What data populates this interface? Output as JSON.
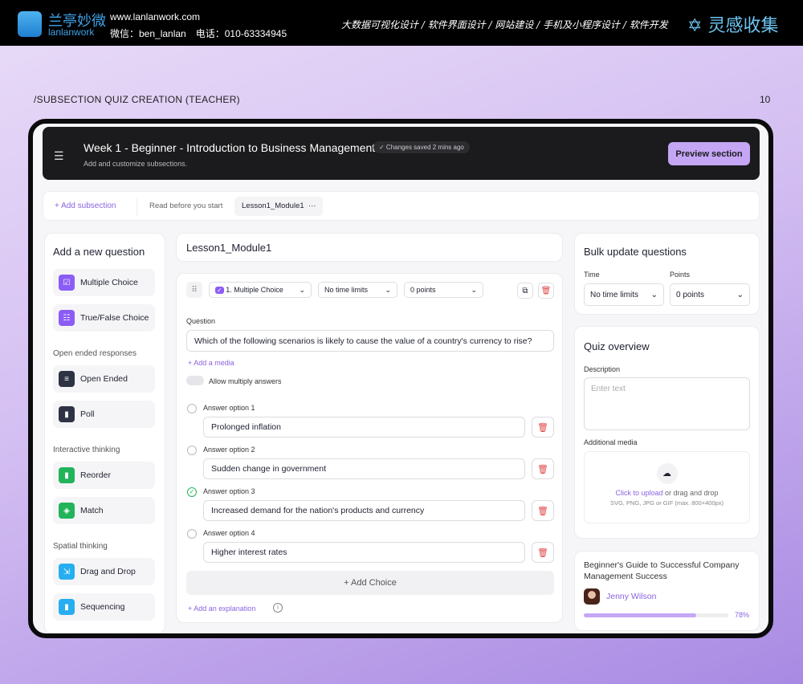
{
  "topbar": {
    "logo_cn": "兰亭妙微",
    "logo_en": "lanlanwork",
    "site": "www.lanlanwork.com",
    "contact": "微信：ben_lanlan　电话：010-63334945",
    "services": "大数据可视化设计 / 软件界面设计 / 网站建设 / 手机及小程序设计 / 软件开发",
    "brand": "灵感收集"
  },
  "slide": {
    "label": "/SUBSECTION QUIZ CREATION (TEACHER)",
    "page": "10"
  },
  "header": {
    "title": "Week 1 - Beginner - Introduction to Business Management",
    "saved": "✓ Changes saved 2 mins ago",
    "subtitle": "Add and customize subsections.",
    "preview": "Preview section"
  },
  "tabs": {
    "add": "+  Add subsection",
    "read": "Read before you start",
    "lesson": "Lesson1_Module1",
    "more": "···"
  },
  "left": {
    "title": "Add a new question",
    "items": [
      {
        "label": "Multiple Choice",
        "color": "#8b5cf6",
        "icon": "☑"
      },
      {
        "label": "True/False Choice",
        "color": "#8b5cf6",
        "icon": "☷"
      }
    ],
    "groups": [
      {
        "title": "Open ended responses",
        "items": [
          {
            "label": "Open Ended",
            "color": "#2d3344",
            "icon": "≡"
          },
          {
            "label": "Poll",
            "color": "#2d3344",
            "icon": "▮"
          }
        ]
      },
      {
        "title": "Interactive thinking",
        "items": [
          {
            "label": "Reorder",
            "color": "#22b45a",
            "icon": "▮"
          },
          {
            "label": "Match",
            "color": "#22b45a",
            "icon": "◈"
          }
        ]
      },
      {
        "title": "Spatial thinking",
        "items": [
          {
            "label": "Drag and Drop",
            "color": "#26aef0",
            "icon": "⇲"
          },
          {
            "label": "Sequencing",
            "color": "#26aef0",
            "icon": "▮"
          }
        ]
      }
    ]
  },
  "lesson_title": "Lesson1_Module1",
  "question": {
    "type": "1. Multiple Choice",
    "time": "No time limits",
    "points": "0 points",
    "label": "Question",
    "text": "Which of the following scenarios is likely to cause the value of a country's currency to rise?",
    "add_media": "+  Add a media",
    "allow_multi": "Allow multiply answers",
    "answers": [
      {
        "label": "Answer option 1",
        "value": "Prolonged inflation",
        "correct": false
      },
      {
        "label": "Answer option 2",
        "value": "Sudden change in government",
        "correct": false
      },
      {
        "label": "Answer option 3",
        "value": "Increased demand for the nation's products and currency",
        "correct": true
      },
      {
        "label": "Answer option 4",
        "value": "Higher interest rates",
        "correct": false
      }
    ],
    "add_choice": "+  Add Choice",
    "add_explanation": "+  Add an explanation"
  },
  "bulk": {
    "title": "Bulk update questions",
    "time_label": "Time",
    "time_value": "No time limits",
    "points_label": "Points",
    "points_value": "0 points"
  },
  "overview": {
    "title": "Quiz overview",
    "desc_label": "Description",
    "desc_placeholder": "Enter text",
    "media_label": "Additional media",
    "upload_link": "Click to upload",
    "upload_rest": " or drag and drop",
    "upload_hint": "SVG, PNG, JPG or GIF (max. 800×400px)"
  },
  "guide": {
    "title": "Beginner's Guide to Successful Company Management Success",
    "author": "Jenny Wilson",
    "progress": 78,
    "progress_label": "78%"
  },
  "colors": {
    "accent": "#8a63e0",
    "preview": "#c4a6f5",
    "danger": "#e04848",
    "correct": "#22b45a"
  }
}
